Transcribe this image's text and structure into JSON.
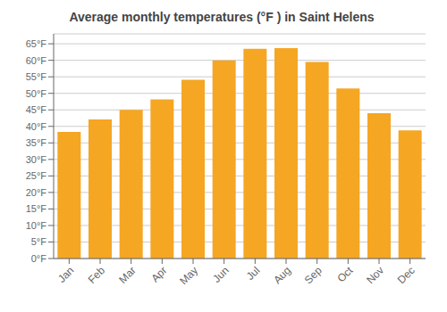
{
  "chart_data": {
    "type": "bar",
    "title": "Average monthly temperatures (°F ) in Saint Helens",
    "categories": [
      "Jan",
      "Feb",
      "Mar",
      "Apr",
      "May",
      "Jun",
      "Jul",
      "Aug",
      "Sep",
      "Oct",
      "Nov",
      "Dec"
    ],
    "values": [
      38.3,
      42.1,
      45.0,
      48.2,
      54.1,
      60.0,
      63.5,
      63.7,
      59.5,
      51.5,
      44.0,
      38.8
    ],
    "color": "#F5A623",
    "ylim": [
      0,
      68
    ],
    "yticks": [
      {
        "value": 0,
        "label": "0°F"
      },
      {
        "value": 5,
        "label": "5°F"
      },
      {
        "value": 10,
        "label": "10°F"
      },
      {
        "value": 15,
        "label": "15°F"
      },
      {
        "value": 20,
        "label": "20°F"
      },
      {
        "value": 25,
        "label": "25°F"
      },
      {
        "value": 30,
        "label": "30°F"
      },
      {
        "value": 35,
        "label": "35°F"
      },
      {
        "value": 40,
        "label": "40°F"
      },
      {
        "value": 45,
        "label": "45°F"
      },
      {
        "value": 50,
        "label": "50°F"
      },
      {
        "value": 55,
        "label": "55°F"
      },
      {
        "value": 60,
        "label": "60°F"
      },
      {
        "value": 65,
        "label": "65°F"
      }
    ],
    "grid": true
  }
}
